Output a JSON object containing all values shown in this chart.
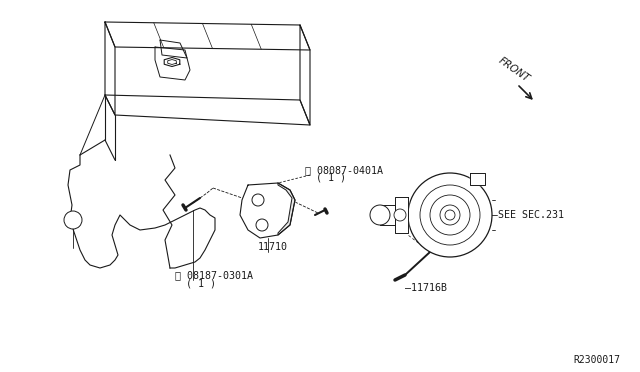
{
  "background_color": "#ffffff",
  "line_color": "#1a1a1a",
  "text_color": "#1a1a1a",
  "diagram_id": "R2300017",
  "label_part1_line1": "Ⓑ 08087-0401A",
  "label_part1_line2": "( 1 )",
  "label_part2": "11710",
  "label_part3_line1": "Ⓑ 08187-0301A",
  "label_part3_line2": "( 1 )",
  "label_sec": "SEE SEC.231",
  "label_bolt": "—11716B",
  "label_front": "FRONT",
  "figsize": [
    6.4,
    3.72
  ],
  "dpi": 100
}
